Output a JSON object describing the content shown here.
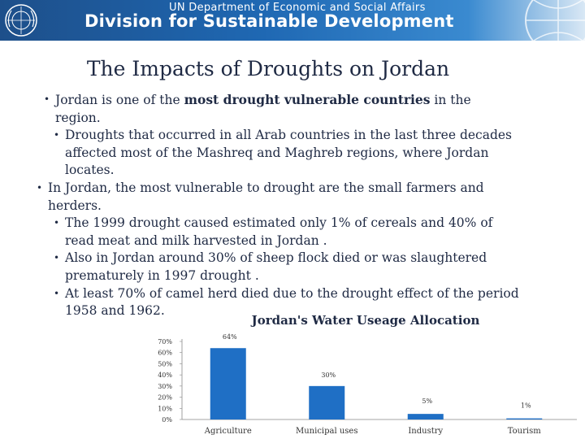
{
  "header": {
    "org_line": "UN Department of Economic and Social Affairs",
    "division": "Division for Sustainable Development",
    "colors": {
      "banner": "#1f68b3",
      "text": "#ffffff"
    }
  },
  "slide": {
    "title": "The Impacts of Droughts on Jordan",
    "bullets": [
      {
        "level": 1,
        "pre": "Jordan is one of the ",
        "bold": "most drought vulnerable countries",
        "post": " in the region."
      },
      {
        "level": 2,
        "text": "Droughts that occurred in all Arab countries in the last three decades affected most of the Mashreq and Maghreb regions, where Jordan locates."
      },
      {
        "level": 0,
        "text": "In Jordan, the most vulnerable to drought are the small farmers and herders."
      },
      {
        "level": 2,
        "text": "The 1999 drought caused estimated only 1% of cereals and 40% of read meat and milk harvested in Jordan ."
      },
      {
        "level": 2,
        "text": "Also in Jordan around 30% of sheep flock died or was slaughtered prematurely in 1997 drought ."
      },
      {
        "level": 2,
        "text": "At least 70% of camel herd died due to the drought effect of the period 1958 and 1962."
      }
    ]
  },
  "chart_data": {
    "type": "bar",
    "title": "Jordan's Water Useage Allocation",
    "categories": [
      "Agriculture",
      "Municipal uses",
      "Industry",
      "Tourism"
    ],
    "values": [
      64,
      30,
      5,
      1
    ],
    "data_labels": [
      "64%",
      "30%",
      "5%",
      "1%"
    ],
    "ylim": [
      0,
      70
    ],
    "yticks": [
      "0%",
      "10%",
      "20%",
      "30%",
      "40%",
      "50%",
      "60%",
      "70%"
    ],
    "bar_color": "#1f6fc5",
    "xlabel": "",
    "ylabel": ""
  }
}
